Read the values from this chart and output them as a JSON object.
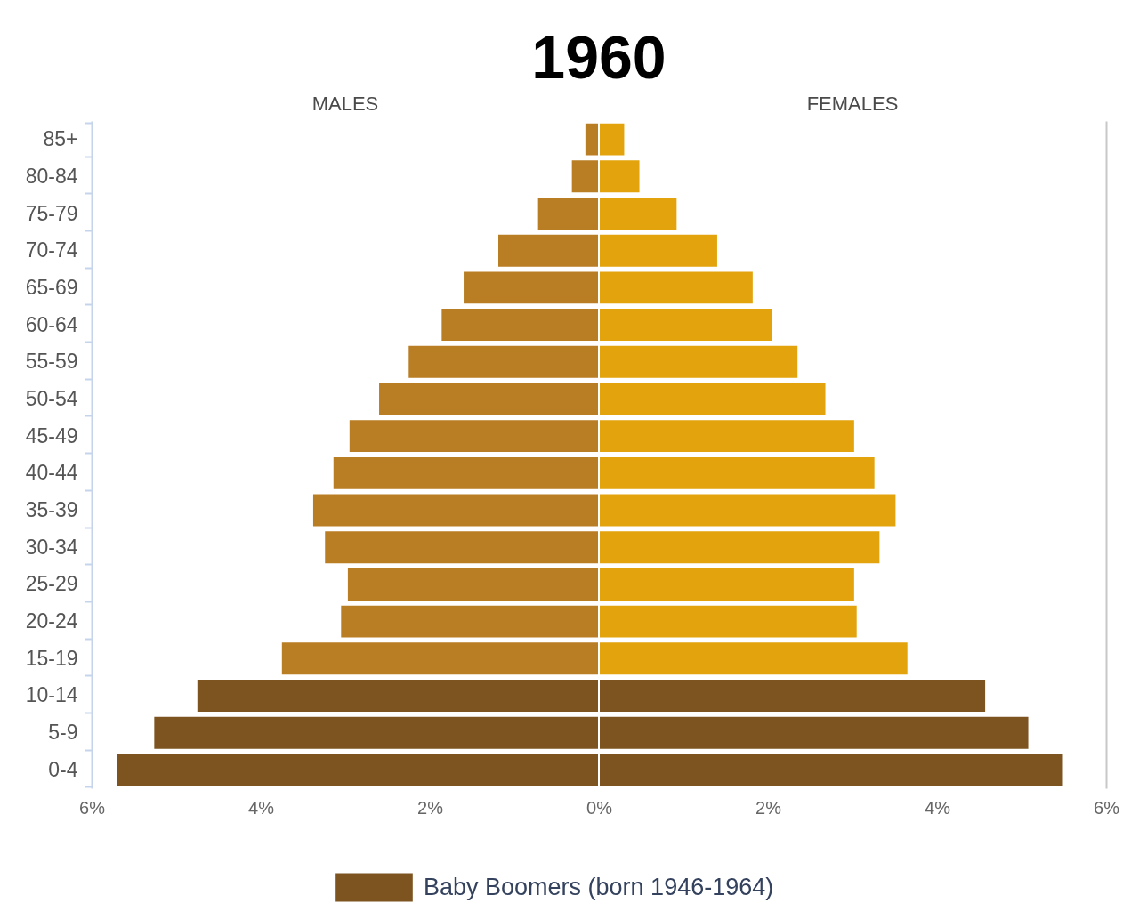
{
  "chart_data": {
    "type": "bar",
    "title": "1960",
    "orientation": "horizontal",
    "stacked": true,
    "categories": [
      "85+",
      "80-84",
      "75-79",
      "70-74",
      "65-69",
      "60-64",
      "55-59",
      "50-54",
      "45-49",
      "40-44",
      "35-39",
      "30-34",
      "25-29",
      "20-24",
      "15-19",
      "10-14",
      "5-9",
      "0-4"
    ],
    "series": [
      {
        "color": "#b97d23",
        "values": [
          -0.17,
          -0.33,
          -0.73,
          -1.2,
          -1.61,
          -1.87,
          -2.26,
          -2.61,
          -2.96,
          -3.15,
          -3.39,
          -3.25,
          -2.98,
          -3.06,
          -3.76,
          null,
          null,
          null
        ]
      },
      {
        "color": "#e3a30c",
        "values": [
          0.31,
          0.49,
          0.93,
          1.41,
          1.83,
          2.06,
          2.36,
          2.69,
          3.03,
          3.27,
          3.52,
          3.33,
          3.03,
          3.06,
          3.66,
          null,
          null,
          null
        ]
      },
      {
        "name": "Baby Boomers (born 1946-1964)",
        "color": "#7d5420",
        "values": [
          null,
          null,
          null,
          null,
          null,
          null,
          null,
          null,
          null,
          null,
          null,
          null,
          null,
          null,
          null,
          -4.76,
          -5.27,
          -5.71
        ]
      },
      {
        "color": "#7d5420",
        "values": [
          null,
          null,
          null,
          null,
          null,
          null,
          null,
          null,
          null,
          null,
          null,
          null,
          null,
          null,
          null,
          4.58,
          5.09,
          5.5
        ]
      }
    ],
    "xlim": [
      -6,
      6
    ],
    "xticks": [
      {
        "value": -6,
        "label": "6%"
      },
      {
        "value": -4,
        "label": "4%"
      },
      {
        "value": -2,
        "label": "2%"
      },
      {
        "value": 0,
        "label": "0%"
      },
      {
        "value": 2,
        "label": "2%"
      },
      {
        "value": 4,
        "label": "4%"
      },
      {
        "value": 6,
        "label": "6%"
      }
    ],
    "annotations": [
      "MALES",
      "FEMALES"
    ],
    "legend": "bottom"
  }
}
